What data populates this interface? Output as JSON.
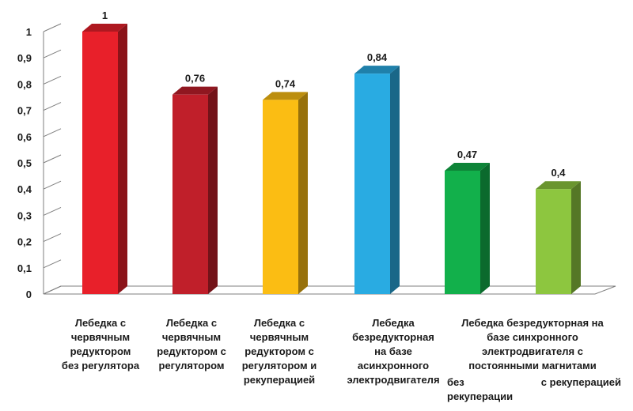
{
  "chart_data": {
    "type": "bar",
    "title": "",
    "xlabel": "",
    "ylabel": "",
    "ylim": [
      0,
      1
    ],
    "yticks": [
      "0",
      "0,1",
      "0,2",
      "0,3",
      "0,4",
      "0,5",
      "0,6",
      "0,7",
      "0,8",
      "0,9",
      "1"
    ],
    "grid": false,
    "legend": "none",
    "categories": [
      "Лебедка с червячным редуктором без регулятора",
      "Лебедка с червячным редуктором с регулятором",
      "Лебедка с червячным редуктором с регулятором и рекуперацией",
      "Лебедка безредукторная на базе асинхронного электродвигателя",
      "без рекуперации",
      "с рекуперацией"
    ],
    "values": [
      1,
      0.76,
      0.74,
      0.84,
      0.47,
      0.4
    ],
    "value_labels": [
      "1",
      "0,76",
      "0,74",
      "0,84",
      "0,47",
      "0,4"
    ],
    "colors": [
      "#e8202a",
      "#c01f2a",
      "#fbbd13",
      "#29abe2",
      "#12b04b",
      "#8dc63f"
    ],
    "group_label": "Лебедка безредукторная на базе синхронного электродвигателя с постоянными магнитами"
  },
  "labels": {
    "cat1": "Лебедка с\nчервячным\nредуктором\nбез регулятора",
    "cat2": "Лебедка с\nчервячным\nредуктором с\nрегулятором",
    "cat3": "Лебедка с\nчервячным\nредуктором с\nрегулятором и\nрекуперацией",
    "cat4": "Лебедка\nбезредукторная\nна базе\nасинхронного\nэлектродвигателя",
    "group": "Лебедка безредукторная на базе синхронного электродвигателя с постоянными магнитами",
    "sub1": "без рекуперации",
    "sub2": "с рекуперацией"
  }
}
